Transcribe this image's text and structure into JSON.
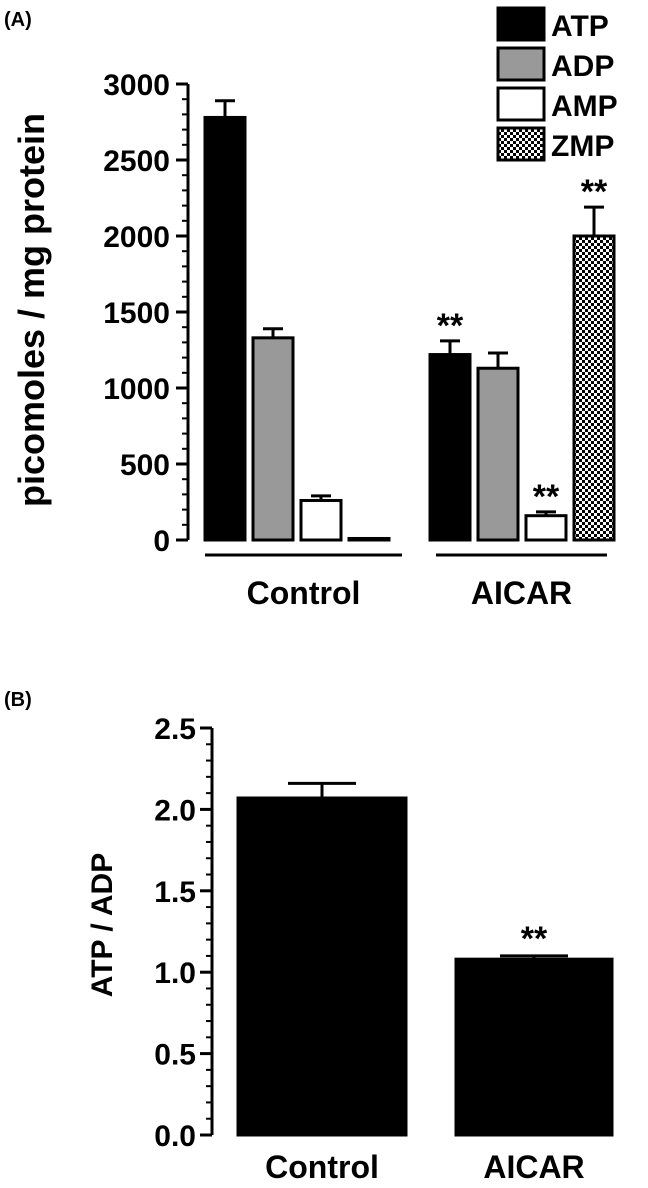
{
  "chart_data": [
    {
      "panel_label": "(A)",
      "type": "bar",
      "categories": [
        "Control",
        "AICAR"
      ],
      "series": [
        {
          "name": "ATP",
          "values": [
            2780,
            1220
          ],
          "errors": [
            110,
            90
          ],
          "color": "#000000",
          "pattern": "solid"
        },
        {
          "name": "ADP",
          "values": [
            1330,
            1130
          ],
          "errors": [
            60,
            100
          ],
          "color": "#999999",
          "pattern": "solid"
        },
        {
          "name": "AMP",
          "values": [
            260,
            160
          ],
          "errors": [
            30,
            25
          ],
          "color": "#ffffff",
          "pattern": "solid"
        },
        {
          "name": "ZMP",
          "values": [
            10,
            2000
          ],
          "errors": [
            0,
            190
          ],
          "color": "#ffffff",
          "pattern": "checker"
        }
      ],
      "annotations": [
        {
          "category": "AICAR",
          "series": "ATP",
          "text": "**"
        },
        {
          "category": "AICAR",
          "series": "AMP",
          "text": "**"
        },
        {
          "category": "AICAR",
          "series": "ZMP",
          "text": "**"
        }
      ],
      "ylabel": "picomoles / mg protein",
      "ylim": [
        0,
        3000
      ],
      "yticks": [
        "0",
        "500",
        "1000",
        "1500",
        "2000",
        "2500",
        "3000"
      ],
      "legend": "top-right",
      "grid": false
    },
    {
      "panel_label": "(B)",
      "type": "bar",
      "categories": [
        "Control",
        "AICAR"
      ],
      "values": [
        2.07,
        1.08
      ],
      "errors": [
        0.09,
        0.02
      ],
      "color": "#000000",
      "annotations": [
        {
          "category": "AICAR",
          "text": "**"
        }
      ],
      "ylabel": "ATP / ADP",
      "ylim": [
        0,
        2.5
      ],
      "yticks": [
        "0.0",
        "0.5",
        "1.0",
        "1.5",
        "2.0",
        "2.5"
      ],
      "grid": false
    }
  ]
}
